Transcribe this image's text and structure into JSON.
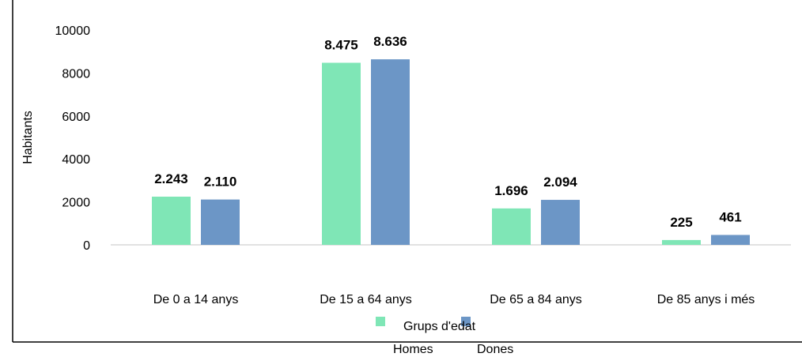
{
  "chart_data": {
    "type": "bar",
    "categories": [
      "De 0 a 14 anys",
      "De 15 a 64 anys",
      "De 65 a 84 anys",
      "De 85 anys i més"
    ],
    "series": [
      {
        "name": "Homes",
        "values": [
          2243,
          8475,
          1696,
          225
        ],
        "labels": [
          "2.243",
          "8.475",
          "1.696",
          "225"
        ],
        "color": "#7FE6B6"
      },
      {
        "name": "Dones",
        "values": [
          2110,
          8636,
          2094,
          461
        ],
        "labels": [
          "2.110",
          "8.636",
          "2.094",
          "461"
        ],
        "color": "#6C96C6"
      }
    ],
    "xlabel": "Grups d'edat",
    "ylabel": "Habitants",
    "ylim": [
      0,
      10000
    ],
    "yticks": [
      0,
      2000,
      4000,
      6000,
      8000,
      10000
    ],
    "grid": false,
    "legend": "bottom"
  }
}
